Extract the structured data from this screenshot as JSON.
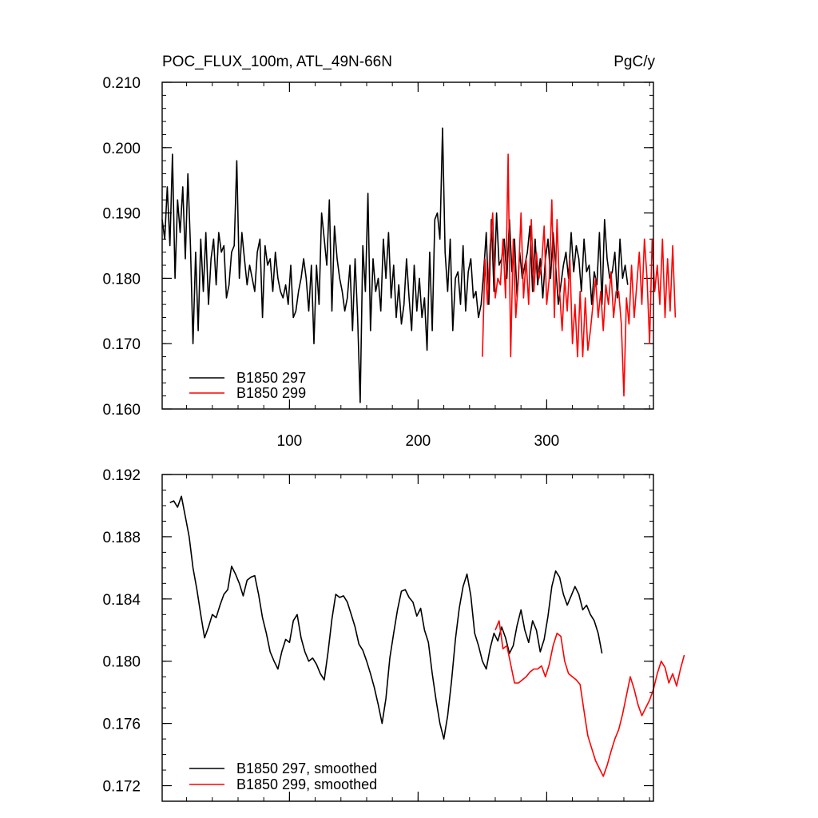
{
  "chart_data": [
    {
      "type": "line",
      "title_left": "POC_FLUX_100m, ATL_49N-66N",
      "title_right": "PgC/y",
      "xlim": [
        1,
        383
      ],
      "ylim": [
        0.16,
        0.21
      ],
      "xticks": [
        100,
        200,
        300
      ],
      "xtick_labels": [
        "100",
        "200",
        "300"
      ],
      "yticks": [
        0.16,
        0.17,
        0.18,
        0.19,
        0.2,
        0.21
      ],
      "ytick_labels": [
        "0.160",
        "0.170",
        "0.180",
        "0.190",
        "0.200",
        "0.210"
      ],
      "legend_position": "bottom-left",
      "series": [
        {
          "name": "B1850 297",
          "color": "#000000",
          "x_start": 1,
          "x_step": 2,
          "values": [
            0.189,
            0.186,
            0.194,
            0.185,
            0.199,
            0.18,
            0.192,
            0.187,
            0.194,
            0.183,
            0.196,
            0.185,
            0.17,
            0.184,
            0.172,
            0.186,
            0.178,
            0.187,
            0.176,
            0.183,
            0.186,
            0.179,
            0.187,
            0.184,
            0.185,
            0.177,
            0.179,
            0.184,
            0.185,
            0.198,
            0.18,
            0.187,
            0.183,
            0.179,
            0.182,
            0.18,
            0.178,
            0.184,
            0.186,
            0.174,
            0.185,
            0.182,
            0.183,
            0.178,
            0.184,
            0.18,
            0.178,
            0.177,
            0.179,
            0.176,
            0.182,
            0.174,
            0.175,
            0.178,
            0.18,
            0.183,
            0.18,
            0.175,
            0.182,
            0.17,
            0.182,
            0.176,
            0.19,
            0.186,
            0.182,
            0.192,
            0.175,
            0.188,
            0.183,
            0.18,
            0.178,
            0.175,
            0.177,
            0.182,
            0.172,
            0.183,
            0.174,
            0.161,
            0.185,
            0.178,
            0.193,
            0.172,
            0.183,
            0.178,
            0.18,
            0.175,
            0.186,
            0.18,
            0.187,
            0.177,
            0.182,
            0.174,
            0.179,
            0.173,
            0.176,
            0.183,
            0.177,
            0.172,
            0.182,
            0.175,
            0.18,
            0.174,
            0.177,
            0.169,
            0.184,
            0.172,
            0.189,
            0.19,
            0.186,
            0.203,
            0.184,
            0.178,
            0.186,
            0.172,
            0.18,
            0.181,
            0.176,
            0.185,
            0.175,
            0.181,
            0.183,
            0.177,
            0.178,
            0.174,
            0.176,
            0.181,
            0.187,
            0.176,
            0.189,
            0.178,
            0.19,
            0.182,
            0.183,
            0.186,
            0.18,
            0.189,
            0.181,
            0.186,
            0.177,
            0.184,
            0.18,
            0.182,
            0.184,
            0.188,
            0.178,
            0.186,
            0.179,
            0.183,
            0.177,
            0.183,
            0.186,
            0.18,
            0.187,
            0.182,
            0.176,
            0.179,
            0.182,
            0.184,
            0.18,
            0.187,
            0.181,
            0.185,
            0.183,
            0.178,
            0.186,
            0.181,
            0.182,
            0.176,
            0.181,
            0.179,
            0.187,
            0.176,
            0.189,
            0.183,
            0.18,
            0.181,
            0.184,
            0.177,
            0.186,
            0.18,
            0.182,
            0.179
          ]
        },
        {
          "name": "B1850 299",
          "color": "#ff0000",
          "x_start": 250,
          "x_step": 2,
          "values": [
            0.168,
            0.183,
            0.176,
            0.185,
            0.19,
            0.177,
            0.18,
            0.179,
            0.186,
            0.177,
            0.199,
            0.168,
            0.186,
            0.174,
            0.18,
            0.19,
            0.177,
            0.183,
            0.176,
            0.189,
            0.178,
            0.184,
            0.18,
            0.182,
            0.188,
            0.176,
            0.18,
            0.192,
            0.174,
            0.189,
            0.178,
            0.172,
            0.18,
            0.175,
            0.183,
            0.17,
            0.176,
            0.168,
            0.178,
            0.168,
            0.177,
            0.169,
            0.172,
            0.176,
            0.18,
            0.174,
            0.178,
            0.172,
            0.179,
            0.176,
            0.181,
            0.174,
            0.178,
            0.178,
            0.173,
            0.162,
            0.177,
            0.173,
            0.182,
            0.174,
            0.179,
            0.184,
            0.176,
            0.186,
            0.18,
            0.17,
            0.186,
            0.178,
            0.182,
            0.176,
            0.186,
            0.174,
            0.183,
            0.175,
            0.185,
            0.174
          ]
        }
      ]
    },
    {
      "type": "line",
      "xlim": [
        1,
        383
      ],
      "ylim": [
        0.171,
        0.192
      ],
      "xticks": [
        100,
        200,
        300
      ],
      "yticks": [
        0.172,
        0.176,
        0.18,
        0.184,
        0.188,
        0.192
      ],
      "ytick_labels": [
        "0.172",
        "0.176",
        "0.180",
        "0.184",
        "0.188",
        "0.192"
      ],
      "legend_position": "bottom-left",
      "series": [
        {
          "name": "B1850 297, smoothed",
          "color": "#000000",
          "x_start": 7,
          "x_step": 3,
          "values": [
            0.1902,
            0.1903,
            0.1899,
            0.1906,
            0.1893,
            0.188,
            0.186,
            0.1846,
            0.183,
            0.1815,
            0.1822,
            0.183,
            0.1828,
            0.1836,
            0.1843,
            0.1846,
            0.1861,
            0.1856,
            0.185,
            0.1842,
            0.1852,
            0.1854,
            0.1855,
            0.1843,
            0.1828,
            0.1818,
            0.1806,
            0.18,
            0.1795,
            0.1806,
            0.1814,
            0.1812,
            0.1826,
            0.183,
            0.1815,
            0.1806,
            0.18,
            0.1802,
            0.1798,
            0.1792,
            0.1788,
            0.1806,
            0.1827,
            0.1843,
            0.1841,
            0.1842,
            0.1838,
            0.183,
            0.1822,
            0.1811,
            0.1807,
            0.18,
            0.1792,
            0.1783,
            0.1772,
            0.176,
            0.1776,
            0.1802,
            0.1818,
            0.1833,
            0.1845,
            0.1846,
            0.1841,
            0.1838,
            0.1829,
            0.1834,
            0.182,
            0.1812,
            0.1792,
            0.1775,
            0.176,
            0.175,
            0.1765,
            0.1787,
            0.1814,
            0.1834,
            0.1848,
            0.1856,
            0.1842,
            0.1818,
            0.181,
            0.18,
            0.1795,
            0.1808,
            0.1818,
            0.1813,
            0.1822,
            0.1815,
            0.1805,
            0.181,
            0.1823,
            0.1833,
            0.182,
            0.1812,
            0.1826,
            0.182,
            0.1806,
            0.1814,
            0.1829,
            0.1848,
            0.1858,
            0.1854,
            0.1843,
            0.1836,
            0.1842,
            0.1848,
            0.1843,
            0.1833,
            0.1836,
            0.183,
            0.1826,
            0.1818,
            0.1805
          ]
        },
        {
          "name": "B1850 299, smoothed",
          "color": "#ff0000",
          "x_start": 260,
          "x_step": 3,
          "values": [
            0.182,
            0.1826,
            0.1808,
            0.181,
            0.1798,
            0.1786,
            0.1786,
            0.1788,
            0.179,
            0.1793,
            0.1795,
            0.1795,
            0.1797,
            0.179,
            0.1798,
            0.181,
            0.1818,
            0.1816,
            0.18,
            0.1792,
            0.179,
            0.1788,
            0.1785,
            0.1768,
            0.1752,
            0.1744,
            0.1736,
            0.1731,
            0.1726,
            0.1733,
            0.1742,
            0.175,
            0.1756,
            0.1766,
            0.1778,
            0.179,
            0.1782,
            0.1772,
            0.1765,
            0.177,
            0.1775,
            0.1782,
            0.1792,
            0.18,
            0.1796,
            0.1786,
            0.1792,
            0.1784,
            0.1795,
            0.1804
          ]
        }
      ]
    }
  ]
}
